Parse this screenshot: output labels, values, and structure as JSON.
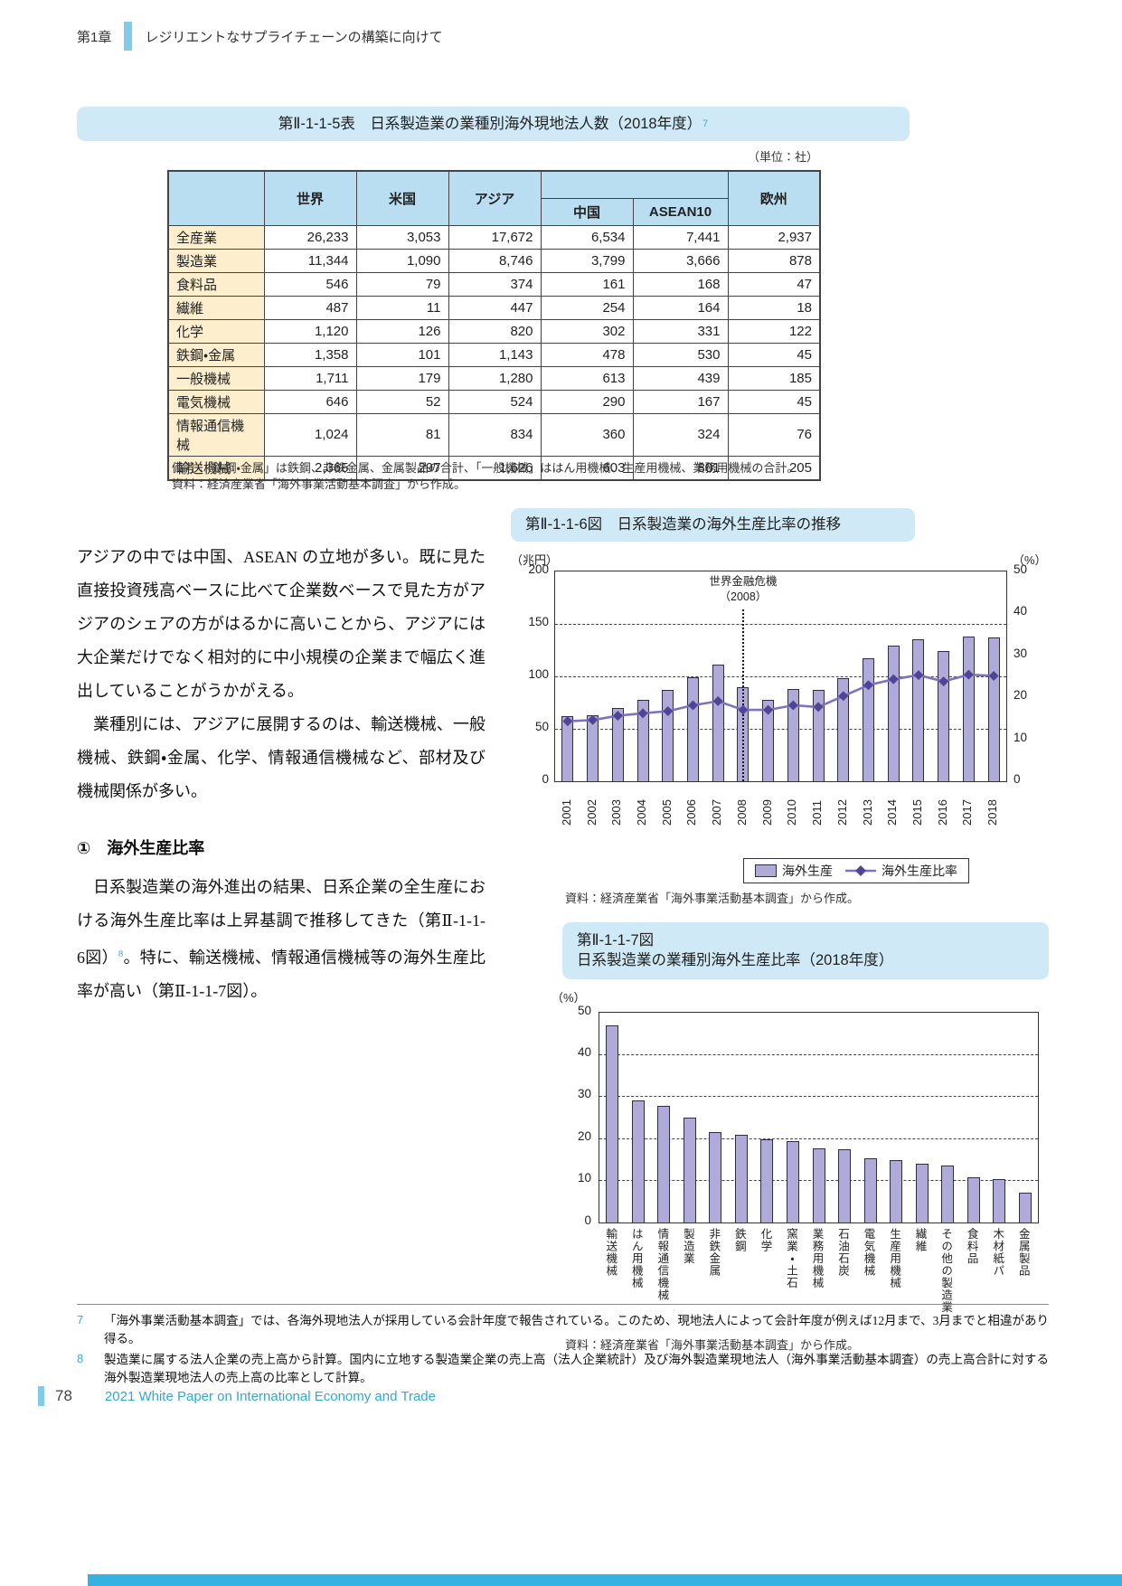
{
  "header": {
    "chapter": "第1章",
    "title": "レジリエントなサプライチェーンの構築に向けて"
  },
  "table_section": {
    "title": "第Ⅱ-1-1-5表　日系製造業の業種別海外現地法人数（2018年度）",
    "title_note_ref": "7",
    "unit": "（単位：社）",
    "columns": {
      "world": "世界",
      "us": "米国",
      "asia": "アジア",
      "china": "中国",
      "asean10": "ASEAN10",
      "europe": "欧州"
    },
    "rows": [
      {
        "label": "全産業",
        "values": [
          "26,233",
          "3,053",
          "17,672",
          "6,534",
          "7,441",
          "2,937"
        ]
      },
      {
        "label": "製造業",
        "values": [
          "11,344",
          "1,090",
          "8,746",
          "3,799",
          "3,666",
          "878"
        ]
      },
      {
        "label": "食料品",
        "values": [
          "546",
          "79",
          "374",
          "161",
          "168",
          "47"
        ]
      },
      {
        "label": "繊維",
        "values": [
          "487",
          "11",
          "447",
          "254",
          "164",
          "18"
        ]
      },
      {
        "label": "化学",
        "values": [
          "1,120",
          "126",
          "820",
          "302",
          "331",
          "122"
        ]
      },
      {
        "label": "鉄鋼・金属",
        "values": [
          "1,358",
          "101",
          "1,143",
          "478",
          "530",
          "45"
        ]
      },
      {
        "label": "一般機械",
        "values": [
          "1,711",
          "179",
          "1,280",
          "613",
          "439",
          "185"
        ]
      },
      {
        "label": "電気機械",
        "values": [
          "646",
          "52",
          "524",
          "290",
          "167",
          "45"
        ]
      },
      {
        "label": "情報通信機械",
        "values": [
          "1,024",
          "81",
          "834",
          "360",
          "324",
          "76"
        ]
      },
      {
        "label": "輸送機械",
        "values": [
          "2,365",
          "297",
          "1,626",
          "603",
          "801",
          "205"
        ]
      }
    ],
    "remark": "備考：「鉄鋼・金属」は鉄鋼、非鉄金属、金属製品の合計、「一般機械」ははん用機械、生産用機械、業務用機械の合計。",
    "source": "資料：経済産業省「海外事業活動基本調査」から作成。"
  },
  "body": {
    "p1": "アジアの中では中国、ASEAN の立地が多い。既に見た直接投資残高ベースに比べて企業数ベースで見た方がアジアのシェアの方がはるかに高いことから、アジアには大企業だけでなく相対的に中小規模の企業まで幅広く進出していることがうかがえる。",
    "p2": "業種別には、アジアに展開するのは、輸送機械、一般機械、鉄鋼・金属、化学、情報通信機械など、部材及び機械関係が多い。",
    "heading": "①　海外生産比率",
    "p3_before": "日系製造業の海外進出の結果、日系企業の全生産における海外生産比率は上昇基調で推移してきた（第Ⅱ-1-1-6図）",
    "p3_note_ref": "8",
    "p3_after": "。特に、輸送機械、情報通信機械等の海外生産比率が高い（第Ⅱ-1-1-7図）。"
  },
  "figure6": {
    "title": "第Ⅱ-1-1-6図　日系製造業の海外生産比率の推移",
    "left_axis_unit": "（兆円）",
    "right_axis_unit": "（%）",
    "annotation_line1": "世界金融危機",
    "annotation_line2": "（2008）",
    "legend": [
      "海外生産",
      "海外生産比率"
    ],
    "source": "資料：経済産業省「海外事業活動基本調査」から作成。",
    "chart_data": {
      "type": "bar+line",
      "x": [
        "2001",
        "2002",
        "2003",
        "2004",
        "2005",
        "2006",
        "2007",
        "2008",
        "2009",
        "2010",
        "2011",
        "2012",
        "2013",
        "2014",
        "2015",
        "2016",
        "2017",
        "2018"
      ],
      "series": [
        {
          "name": "海外生産",
          "type": "bar",
          "axis": "left",
          "unit": "兆円",
          "values": [
            62,
            63,
            70,
            78,
            87,
            99,
            111,
            90,
            78,
            88,
            87,
            98,
            117,
            129,
            135,
            124,
            138,
            137
          ]
        },
        {
          "name": "海外生産比率",
          "type": "line",
          "axis": "right",
          "unit": "%",
          "values": [
            14.3,
            14.6,
            15.6,
            16.2,
            16.7,
            18.1,
            19.1,
            17.0,
            17.0,
            18.1,
            17.7,
            20.3,
            22.9,
            24.3,
            25.3,
            23.8,
            25.4,
            25.1
          ]
        }
      ],
      "left_ylim": [
        0,
        200
      ],
      "left_ticks": [
        0,
        50,
        100,
        150,
        200
      ],
      "right_ylim": [
        0,
        50
      ],
      "right_ticks": [
        0,
        10,
        20,
        30,
        40,
        50
      ],
      "gridlines_left_values": [
        50,
        100,
        150
      ],
      "annotation_x": "2008",
      "legend_position": "bottom-right"
    }
  },
  "figure7": {
    "title_line1": "第Ⅱ-1-1-7図",
    "title_line2": "日系製造業の業種別海外生産比率（2018年度）",
    "axis_unit": "（%）",
    "source": "資料：経済産業省「海外事業活動基本調査」から作成。",
    "chart_data": {
      "type": "bar",
      "categories": [
        "輸送機械",
        "はん用機械",
        "情報通信機械",
        "製造業",
        "非鉄金属",
        "鉄鋼",
        "化学",
        "窯業・土石",
        "業務用機械",
        "石油石炭",
        "電気機械",
        "生産用機械",
        "繊維",
        "その他の製造業",
        "食料品",
        "木材紙パ",
        "金属製品"
      ],
      "values": [
        46.9,
        29.1,
        27.8,
        25.0,
        21.4,
        20.8,
        19.8,
        19.4,
        17.5,
        17.4,
        15.3,
        14.7,
        14.0,
        13.4,
        10.7,
        10.3,
        7.1
      ],
      "ylim": [
        0,
        50
      ],
      "yticks": [
        0,
        10,
        20,
        30,
        40,
        50
      ],
      "grid": "dashed-horizontal"
    }
  },
  "footnotes": [
    {
      "num": "7",
      "text": "「海外事業活動基本調査」では、各海外現地法人が採用している会計年度で報告されている。このため、現地法人によって会計年度が例えば12月まで、3月までと相違があり得る。"
    },
    {
      "num": "8",
      "text": "製造業に属する法人企業の売上高から計算。国内に立地する製造業企業の売上高（法人企業統計）及び海外製造業現地法人（海外事業活動基本調査）の売上高合計に対する海外製造業現地法人の売上高の比率として計算。"
    }
  ],
  "footer": {
    "page_number": "78",
    "text": "2021 White Paper on International Economy and Trade"
  },
  "colors": {
    "titlebar_bg": "#cfe9f6",
    "table_header_bg": "#b9ddf1",
    "table_label_bg": "#fdeecd",
    "bar_fill": "#b0aad9",
    "bar_border": "#2c2c4e",
    "line_color": "#7d72bf",
    "marker_color": "#4e4597",
    "note_ref_blue": "#3ea9d5",
    "footer_text_blue": "#2faacf",
    "bottom_band_blue": "#35b2e2",
    "header_accent_blue": "#7fcbe9"
  }
}
